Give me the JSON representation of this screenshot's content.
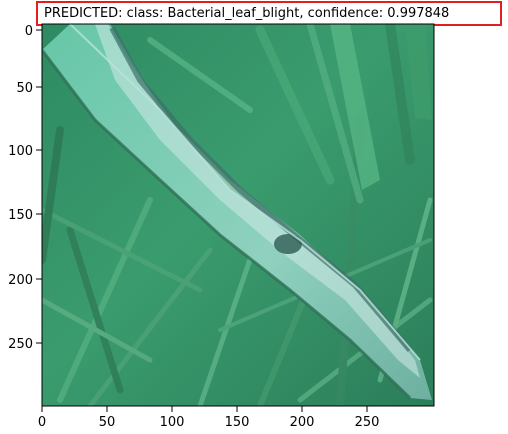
{
  "title": "PREDICTED: class: Bacterial_leaf_blight, confidence: 0.997848",
  "image_subject": "leaf image",
  "axes": {
    "x_ticks": [
      "0",
      "50",
      "100",
      "150",
      "200",
      "250"
    ],
    "y_ticks": [
      "0",
      "50",
      "100",
      "150",
      "200",
      "250"
    ]
  },
  "colors": {
    "highlight_box": "#e02020",
    "leaf_dark": "#2e6f55",
    "leaf_light": "#9fd3c4",
    "grass": "#3f9a6a"
  }
}
